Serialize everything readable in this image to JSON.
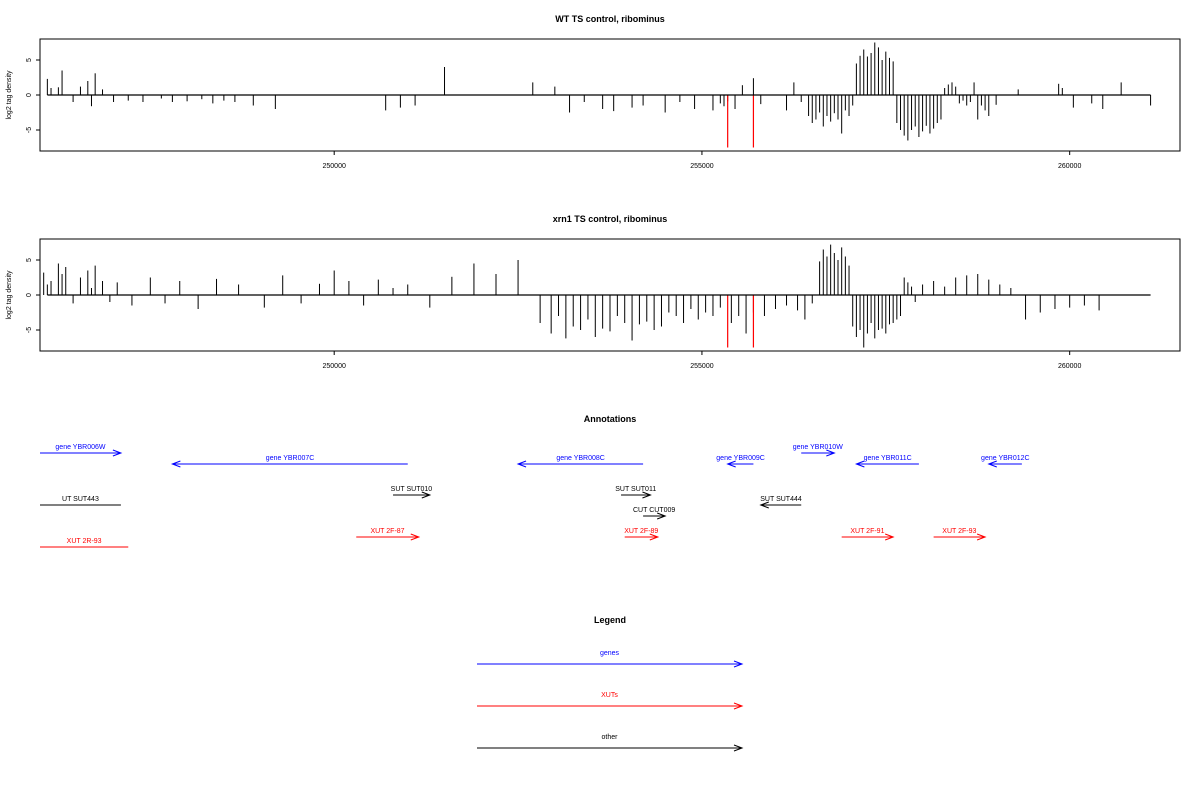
{
  "chart_data": [
    {
      "type": "bar",
      "title": "WT TS control, ribominus",
      "ylabel": "log2 tag density",
      "xlim": [
        246000,
        261500
      ],
      "ylim": [
        -8,
        8
      ],
      "x_ticks": [
        250000,
        255000,
        260000
      ],
      "x_tick_labels": [
        "250000",
        "255000",
        "260000"
      ],
      "y_ticks": [
        -5,
        0,
        5
      ],
      "y_tick_labels": [
        "-5",
        "0",
        "5"
      ],
      "series": [
        {
          "color": "#000000",
          "x": [
            246100,
            246150,
            246250,
            246300,
            246450,
            246550,
            246650,
            246700,
            246750,
            246850,
            247000,
            247200,
            247400,
            247650,
            247800,
            248000,
            248200,
            248350,
            248500,
            248650,
            248900,
            249200,
            250700,
            250900,
            251100,
            251500,
            252700,
            253000,
            253200,
            253400,
            253650,
            253800,
            254050,
            254200,
            254500,
            254700,
            254900,
            255150,
            255250,
            255300,
            255350,
            255450,
            255550,
            255700,
            255800,
            256150,
            256250,
            256350,
            256450,
            256500,
            256550,
            256600,
            256650,
            256700,
            256750,
            256800,
            256850,
            256900,
            256950,
            257000,
            257050,
            257100,
            257150,
            257200,
            257250,
            257300,
            257350,
            257400,
            257450,
            257500,
            257550,
            257600,
            257650,
            257700,
            257750,
            257800,
            257850,
            257900,
            257950,
            258000,
            258050,
            258100,
            258150,
            258200,
            258250,
            258300,
            258350,
            258400,
            258450,
            258500,
            258550,
            258600,
            258650,
            258700,
            258750,
            258800,
            258850,
            258900,
            259000,
            259300,
            259850,
            259900,
            260050,
            260300,
            260450,
            260700,
            261100
          ],
          "values": [
            2.3,
            1.0,
            1.1,
            3.5,
            -1.0,
            1.2,
            2.0,
            -1.6,
            3.1,
            0.8,
            -1.0,
            -0.8,
            -1.0,
            -0.5,
            -1.0,
            -0.9,
            -0.6,
            -1.2,
            -0.8,
            -1.0,
            -1.5,
            -2.0,
            -2.2,
            -1.8,
            -1.5,
            4.0,
            1.8,
            1.2,
            -2.5,
            -1.0,
            -2.0,
            -2.3,
            -1.8,
            -1.5,
            -2.5,
            -1.0,
            -2.0,
            -2.2,
            -1.2,
            -1.6,
            -0.9,
            -2.0,
            1.4,
            2.4,
            -1.3,
            -2.2,
            1.8,
            -1.0,
            -3.0,
            -4.0,
            -3.5,
            -2.5,
            -4.5,
            -3.0,
            -3.8,
            -2.6,
            -3.5,
            -5.5,
            -2.2,
            -3.0,
            -1.5,
            4.5,
            5.6,
            6.5,
            5.5,
            6.0,
            7.5,
            6.8,
            5.0,
            6.2,
            5.3,
            4.8,
            -4.0,
            -5.0,
            -5.8,
            -6.5,
            -5.0,
            -4.5,
            -6.0,
            -5.2,
            -4.4,
            -5.5,
            -4.8,
            -4.0,
            -3.5,
            1.0,
            1.5,
            1.8,
            1.2,
            -1.2,
            -0.8,
            -1.5,
            -1.0,
            1.8,
            -3.5,
            -1.5,
            -2.2,
            -3.0,
            -1.4,
            0.8,
            1.6,
            1.0,
            -1.8,
            -1.2,
            -2.0,
            1.8,
            -1.5
          ]
        },
        {
          "color": "#ff0000",
          "x": [
            255350,
            255700
          ],
          "values": [
            -7.5,
            -7.5
          ]
        }
      ]
    },
    {
      "type": "bar",
      "title": "xrn1 TS control, ribominus",
      "ylabel": "log2 tag density",
      "xlim": [
        246000,
        261500
      ],
      "ylim": [
        -8,
        8
      ],
      "x_ticks": [
        250000,
        255000,
        260000
      ],
      "x_tick_labels": [
        "250000",
        "255000",
        "260000"
      ],
      "y_ticks": [
        -5,
        0,
        5
      ],
      "y_tick_labels": [
        "-5",
        "0",
        "5"
      ],
      "series": [
        {
          "color": "#000000",
          "x": [
            246050,
            246100,
            246150,
            246250,
            246300,
            246350,
            246450,
            246550,
            246650,
            246700,
            246750,
            246850,
            246950,
            247050,
            247250,
            247500,
            247700,
            247900,
            248150,
            248400,
            248700,
            249050,
            249300,
            249550,
            249800,
            250000,
            250200,
            250400,
            250600,
            250800,
            251000,
            251300,
            251600,
            251900,
            252200,
            252500,
            252800,
            252950,
            253050,
            253150,
            253250,
            253350,
            253450,
            253550,
            253650,
            253750,
            253850,
            253950,
            254050,
            254150,
            254250,
            254350,
            254450,
            254550,
            254650,
            254750,
            254850,
            254950,
            255050,
            255150,
            255250,
            255400,
            255500,
            255600,
            255700,
            255850,
            256000,
            256150,
            256300,
            256400,
            256500,
            256600,
            256650,
            256700,
            256750,
            256800,
            256850,
            256900,
            256950,
            257000,
            257050,
            257100,
            257150,
            257200,
            257250,
            257300,
            257350,
            257400,
            257450,
            257500,
            257550,
            257600,
            257650,
            257700,
            257750,
            257800,
            257850,
            257900,
            258000,
            258150,
            258300,
            258450,
            258600,
            258750,
            258900,
            259050,
            259200,
            259400,
            259600,
            259800,
            260000,
            260200,
            260400
          ],
          "values": [
            3.2,
            1.5,
            2.0,
            4.5,
            3.0,
            4.0,
            -1.2,
            2.5,
            3.5,
            1.0,
            4.2,
            2.0,
            -1.0,
            1.8,
            -1.5,
            2.5,
            -1.2,
            2.0,
            -2.0,
            2.3,
            1.5,
            -1.8,
            2.8,
            -1.2,
            1.6,
            3.5,
            2.0,
            -1.5,
            2.2,
            1.0,
            1.5,
            -1.8,
            2.6,
            4.5,
            3.0,
            5.0,
            -4.0,
            -5.5,
            -3.0,
            -6.2,
            -4.5,
            -5.0,
            -3.5,
            -6.0,
            -4.8,
            -5.2,
            -3.0,
            -4.0,
            -6.5,
            -4.2,
            -3.8,
            -5.0,
            -4.5,
            -2.5,
            -3.0,
            -4.0,
            -2.0,
            -3.5,
            -2.5,
            -3.0,
            -1.8,
            -4.0,
            -3.0,
            -5.5,
            -2.5,
            -3.0,
            -2.0,
            -1.5,
            -2.2,
            -3.5,
            -1.2,
            4.8,
            6.5,
            5.5,
            7.2,
            6.0,
            5.0,
            6.8,
            5.5,
            4.2,
            -4.5,
            -6.0,
            -5.0,
            -7.5,
            -5.5,
            -4.0,
            -6.2,
            -5.0,
            -4.8,
            -5.5,
            -4.2,
            -4.0,
            -3.5,
            -3.0,
            2.5,
            1.8,
            1.2,
            -1.0,
            1.5,
            2.0,
            1.2,
            2.5,
            2.8,
            3.0,
            2.2,
            1.5,
            1.0,
            -3.5,
            -2.5,
            -2.0,
            -1.8,
            -1.5,
            -2.2
          ]
        },
        {
          "color": "#ff0000",
          "x": [
            255350,
            255700
          ],
          "values": [
            -7.5,
            -7.5
          ]
        }
      ]
    }
  ],
  "annotations": {
    "title": "Annotations",
    "items": [
      {
        "label": "gene YBR006W",
        "color": "#0000ff",
        "row": 0,
        "start": 246000,
        "end": 247100,
        "dir": "right"
      },
      {
        "label": "gene YBR007C",
        "color": "#0000ff",
        "row": 1,
        "start": 247800,
        "end": 251000,
        "dir": "left"
      },
      {
        "label": "gene YBR008C",
        "color": "#0000ff",
        "row": 1,
        "start": 252500,
        "end": 254200,
        "dir": "left"
      },
      {
        "label": "gene YBR009C",
        "color": "#0000ff",
        "row": 1,
        "start": 255350,
        "end": 255700,
        "dir": "left"
      },
      {
        "label": "gene YBR010W",
        "color": "#0000ff",
        "row": 0,
        "start": 256350,
        "end": 256800,
        "dir": "right"
      },
      {
        "label": "gene YBR011C",
        "color": "#0000ff",
        "row": 1,
        "start": 257100,
        "end": 257950,
        "dir": "left"
      },
      {
        "label": "gene YBR012C",
        "color": "#0000ff",
        "row": 1,
        "start": 258900,
        "end": 259350,
        "dir": "left"
      },
      {
        "label": "UT SUT443",
        "color": "#000000",
        "row": 3,
        "start": 246000,
        "end": 247100,
        "dir": "none"
      },
      {
        "label": "SUT SUT010",
        "color": "#000000",
        "row": 2,
        "start": 250800,
        "end": 251300,
        "dir": "right"
      },
      {
        "label": "SUT SUT011",
        "color": "#000000",
        "row": 2,
        "start": 253900,
        "end": 254300,
        "dir": "right"
      },
      {
        "label": "SUT SUT444",
        "color": "#000000",
        "row": 3,
        "start": 255800,
        "end": 256350,
        "dir": "left"
      },
      {
        "label": "CUT CUT009",
        "color": "#000000",
        "row": 4,
        "start": 254200,
        "end": 254500,
        "dir": "right"
      },
      {
        "label": "XUT 2R-93",
        "color": "#ff0000",
        "row": 6,
        "start": 246000,
        "end": 247200,
        "dir": "none"
      },
      {
        "label": "XUT 2F-87",
        "color": "#ff0000",
        "row": 5,
        "start": 250300,
        "end": 251150,
        "dir": "right"
      },
      {
        "label": "XUT 2F-89",
        "color": "#ff0000",
        "row": 5,
        "start": 253950,
        "end": 254400,
        "dir": "right"
      },
      {
        "label": "XUT 2F-91",
        "color": "#ff0000",
        "row": 5,
        "start": 256900,
        "end": 257600,
        "dir": "right"
      },
      {
        "label": "XUT 2F-93",
        "color": "#ff0000",
        "row": 5,
        "start": 258150,
        "end": 258850,
        "dir": "right"
      }
    ]
  },
  "legend": {
    "title": "Legend",
    "items": [
      {
        "label": "genes",
        "color": "#0000ff"
      },
      {
        "label": "XUTs",
        "color": "#ff0000"
      },
      {
        "label": "other",
        "color": "#000000"
      }
    ]
  }
}
